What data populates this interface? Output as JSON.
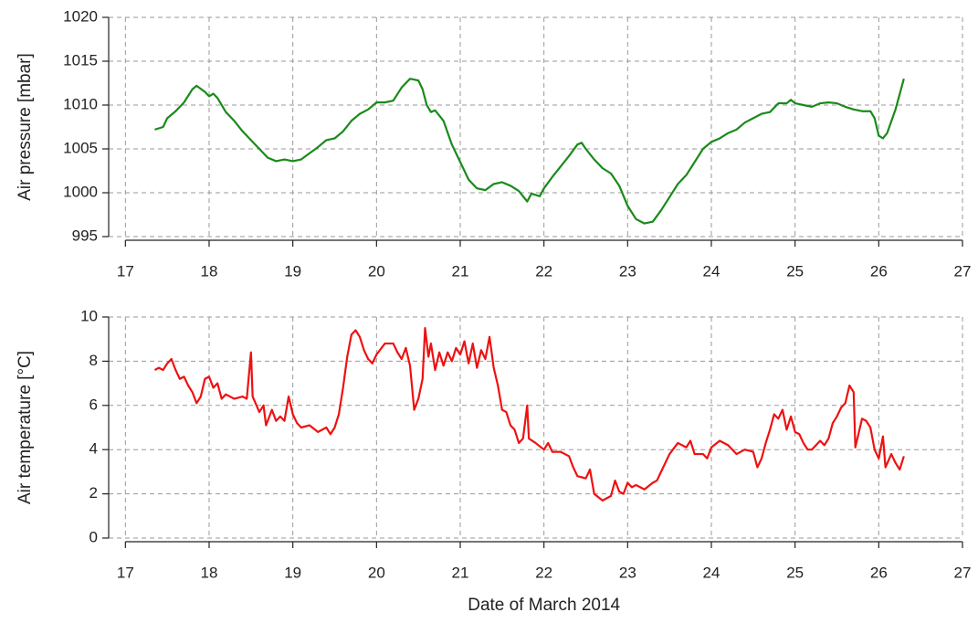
{
  "chart_data": [
    {
      "type": "line",
      "ylabel": "Air pressure [mbar]",
      "xlim": [
        16.8,
        27
      ],
      "xticks": [
        17,
        18,
        19,
        20,
        21,
        22,
        23,
        24,
        25,
        26,
        27
      ],
      "ylim": [
        995,
        1020
      ],
      "yticks": [
        995,
        1000,
        1005,
        1010,
        1015,
        1020
      ],
      "grid": true,
      "x": [
        17.35,
        17.45,
        17.5,
        17.6,
        17.7,
        17.8,
        17.85,
        17.95,
        18.0,
        18.05,
        18.1,
        18.2,
        18.3,
        18.4,
        18.5,
        18.6,
        18.7,
        18.8,
        18.9,
        19.0,
        19.1,
        19.2,
        19.3,
        19.4,
        19.5,
        19.6,
        19.7,
        19.8,
        19.9,
        20.0,
        20.1,
        20.2,
        20.3,
        20.4,
        20.5,
        20.55,
        20.6,
        20.65,
        20.7,
        20.8,
        20.9,
        21.0,
        21.1,
        21.2,
        21.3,
        21.4,
        21.5,
        21.6,
        21.7,
        21.8,
        21.85,
        21.95,
        22.0,
        22.1,
        22.2,
        22.3,
        22.4,
        22.45,
        22.5,
        22.6,
        22.7,
        22.8,
        22.9,
        23.0,
        23.1,
        23.2,
        23.3,
        23.4,
        23.5,
        23.6,
        23.7,
        23.8,
        23.9,
        24.0,
        24.1,
        24.2,
        24.3,
        24.4,
        24.5,
        24.6,
        24.7,
        24.8,
        24.9,
        24.95,
        25.0,
        25.1,
        25.2,
        25.3,
        25.4,
        25.5,
        25.6,
        25.7,
        25.8,
        25.9,
        25.95,
        26.0,
        26.05,
        26.1,
        26.2,
        26.3
      ],
      "series": [
        {
          "color": "#1a8a1a",
          "values": [
            1007.2,
            1007.5,
            1008.5,
            1009.3,
            1010.3,
            1011.8,
            1012.2,
            1011.5,
            1011.0,
            1011.3,
            1010.8,
            1009.2,
            1008.2,
            1007.0,
            1006.0,
            1005.0,
            1004.0,
            1003.6,
            1003.8,
            1003.6,
            1003.8,
            1004.5,
            1005.2,
            1006.0,
            1006.2,
            1007.0,
            1008.2,
            1009.0,
            1009.5,
            1010.3,
            1010.3,
            1010.5,
            1012.0,
            1013.0,
            1012.8,
            1011.8,
            1010.0,
            1009.2,
            1009.4,
            1008.2,
            1005.5,
            1003.5,
            1001.5,
            1000.5,
            1000.3,
            1001.0,
            1001.2,
            1000.8,
            1000.2,
            999.0,
            999.9,
            999.6,
            1000.5,
            1001.8,
            1003.0,
            1004.2,
            1005.5,
            1005.7,
            1005.0,
            1003.8,
            1002.8,
            1002.2,
            1000.8,
            998.5,
            997.0,
            996.5,
            996.7,
            998.0,
            999.5,
            1001.0,
            1002.0,
            1003.5,
            1005.0,
            1005.8,
            1006.2,
            1006.8,
            1007.2,
            1008.0,
            1008.5,
            1009.0,
            1009.2,
            1010.2,
            1010.2,
            1010.6,
            1010.2,
            1010.0,
            1009.8,
            1010.2,
            1010.3,
            1010.2,
            1009.8,
            1009.5,
            1009.3,
            1009.3,
            1008.5,
            1006.5,
            1006.2,
            1006.8,
            1009.5,
            1013.0
          ]
        }
      ]
    },
    {
      "type": "line",
      "ylabel": "Air temperature [°C]",
      "xlabel": "Date of March 2014",
      "xlim": [
        16.8,
        27
      ],
      "xticks": [
        17,
        18,
        19,
        20,
        21,
        22,
        23,
        24,
        25,
        26,
        27
      ],
      "ylim": [
        0,
        10
      ],
      "yticks": [
        0,
        2,
        4,
        6,
        8,
        10
      ],
      "grid": true,
      "x": [
        17.35,
        17.4,
        17.45,
        17.5,
        17.55,
        17.6,
        17.65,
        17.7,
        17.75,
        17.8,
        17.85,
        17.9,
        17.95,
        18.0,
        18.05,
        18.1,
        18.15,
        18.2,
        18.3,
        18.4,
        18.45,
        18.5,
        18.52,
        18.6,
        18.65,
        18.68,
        18.75,
        18.8,
        18.85,
        18.9,
        18.95,
        19.0,
        19.05,
        19.1,
        19.2,
        19.3,
        19.4,
        19.45,
        19.5,
        19.55,
        19.6,
        19.65,
        19.7,
        19.75,
        19.8,
        19.85,
        19.9,
        19.95,
        20.0,
        20.1,
        20.2,
        20.25,
        20.3,
        20.35,
        20.4,
        20.45,
        20.5,
        20.55,
        20.58,
        20.62,
        20.65,
        20.7,
        20.75,
        20.8,
        20.85,
        20.9,
        20.95,
        21.0,
        21.05,
        21.1,
        21.15,
        21.2,
        21.25,
        21.3,
        21.35,
        21.4,
        21.45,
        21.5,
        21.55,
        21.6,
        21.65,
        21.7,
        21.75,
        21.8,
        21.82,
        21.9,
        22.0,
        22.05,
        22.1,
        22.2,
        22.3,
        22.35,
        22.4,
        22.5,
        22.55,
        22.6,
        22.7,
        22.8,
        22.85,
        22.9,
        22.95,
        23.0,
        23.05,
        23.1,
        23.2,
        23.3,
        23.35,
        23.4,
        23.5,
        23.6,
        23.7,
        23.75,
        23.8,
        23.9,
        23.95,
        24.0,
        24.1,
        24.2,
        24.3,
        24.4,
        24.5,
        24.55,
        24.6,
        24.65,
        24.7,
        24.75,
        24.8,
        24.85,
        24.9,
        24.95,
        25.0,
        25.05,
        25.1,
        25.15,
        25.2,
        25.3,
        25.35,
        25.4,
        25.45,
        25.5,
        25.55,
        25.6,
        25.65,
        25.7,
        25.72,
        25.8,
        25.85,
        25.9,
        25.95,
        26.0,
        26.05,
        26.08,
        26.15,
        26.2,
        26.25,
        26.3
      ],
      "series": [
        {
          "color": "#ee1111",
          "values": [
            7.6,
            7.7,
            7.6,
            7.9,
            8.1,
            7.6,
            7.2,
            7.3,
            6.9,
            6.6,
            6.1,
            6.4,
            7.2,
            7.3,
            6.8,
            7.0,
            6.3,
            6.5,
            6.3,
            6.4,
            6.3,
            8.4,
            6.4,
            5.7,
            6.0,
            5.1,
            5.8,
            5.3,
            5.5,
            5.3,
            6.4,
            5.6,
            5.2,
            5.0,
            5.1,
            4.8,
            5.0,
            4.7,
            5.0,
            5.6,
            6.8,
            8.2,
            9.2,
            9.4,
            9.1,
            8.5,
            8.1,
            7.9,
            8.3,
            8.8,
            8.8,
            8.4,
            8.1,
            8.6,
            7.8,
            5.8,
            6.3,
            7.2,
            9.5,
            8.2,
            8.8,
            7.6,
            8.4,
            7.8,
            8.4,
            8.0,
            8.6,
            8.3,
            8.9,
            7.9,
            8.8,
            7.7,
            8.5,
            8.1,
            9.1,
            7.7,
            6.9,
            5.8,
            5.7,
            5.1,
            4.9,
            4.3,
            4.5,
            6.0,
            4.5,
            4.3,
            4.0,
            4.3,
            3.9,
            3.9,
            3.7,
            3.2,
            2.8,
            2.7,
            3.1,
            2.0,
            1.7,
            1.9,
            2.6,
            2.1,
            2.0,
            2.5,
            2.3,
            2.4,
            2.2,
            2.5,
            2.6,
            3.0,
            3.8,
            4.3,
            4.1,
            4.4,
            3.8,
            3.8,
            3.6,
            4.1,
            4.4,
            4.2,
            3.8,
            4.0,
            3.9,
            3.2,
            3.6,
            4.3,
            4.9,
            5.6,
            5.4,
            5.8,
            4.9,
            5.5,
            4.8,
            4.7,
            4.3,
            4.0,
            4.0,
            4.4,
            4.2,
            4.5,
            5.2,
            5.5,
            5.9,
            6.1,
            6.9,
            6.6,
            4.1,
            5.4,
            5.3,
            5.0,
            4.0,
            3.6,
            4.6,
            3.2,
            3.8,
            3.4,
            3.1,
            3.7
          ]
        }
      ]
    }
  ]
}
